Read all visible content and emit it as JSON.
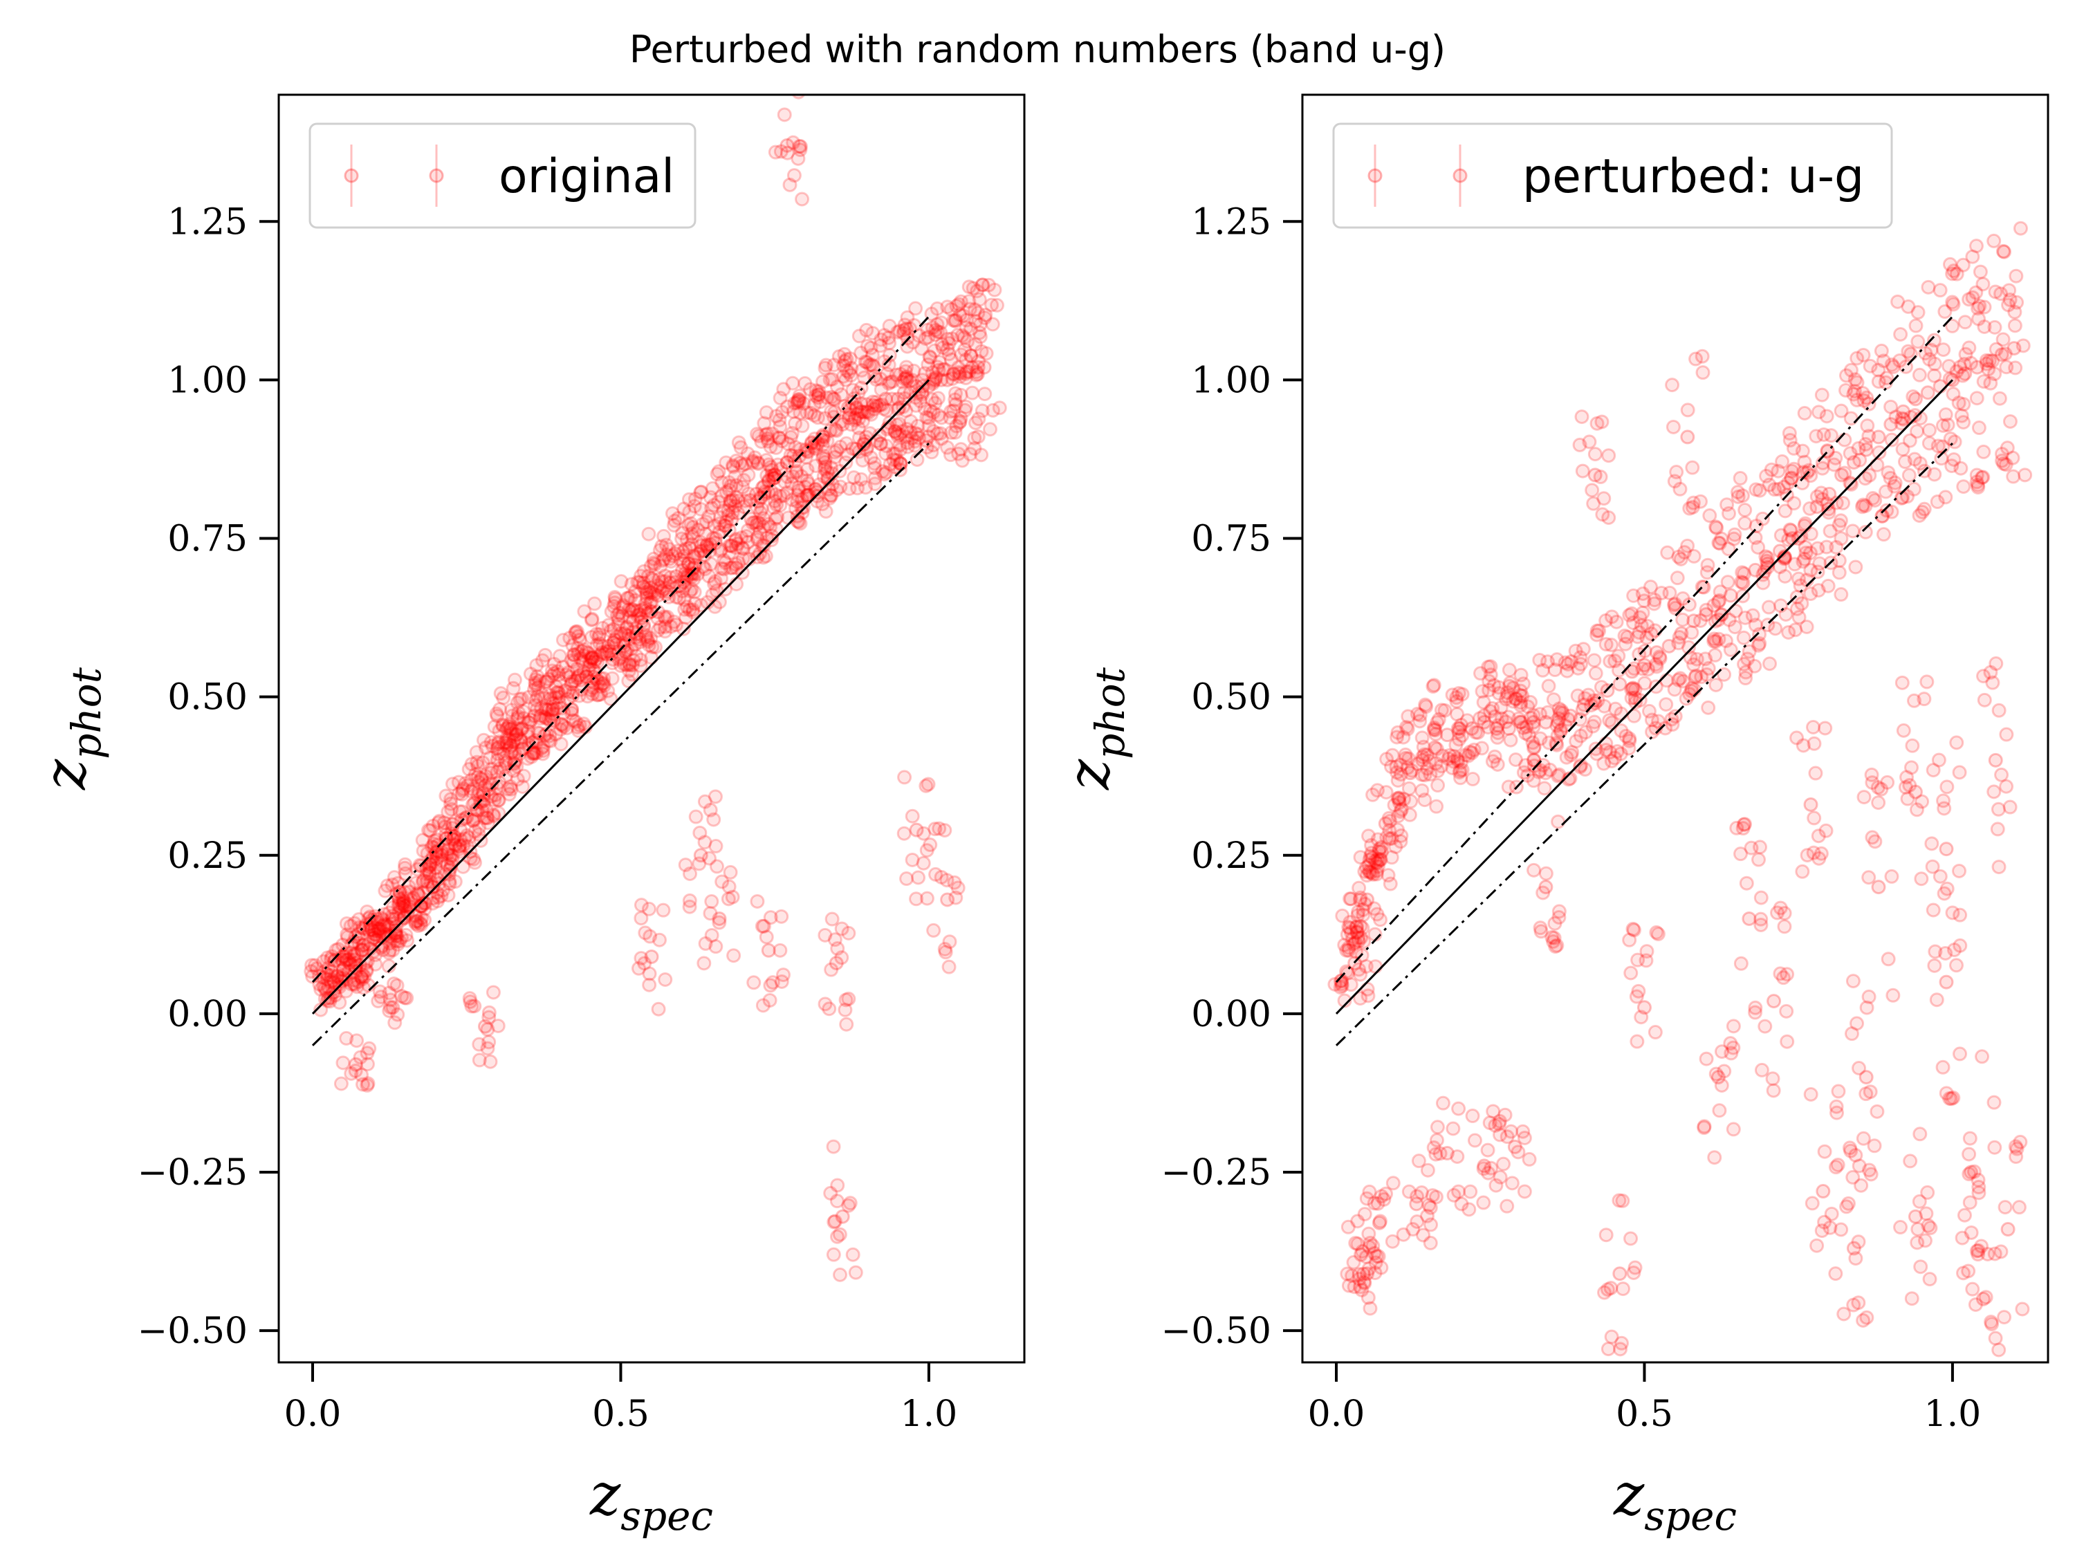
{
  "figure": {
    "title": "Perturbed with random numbers (band u-g)"
  },
  "chart_data": [
    {
      "type": "scatter",
      "legend": "original",
      "legend_position": "upper-left",
      "xlabel": {
        "base": "z",
        "sub": "spec"
      },
      "ylabel": {
        "base": "z",
        "sub": "phot"
      },
      "xlim": [
        -0.055,
        1.155
      ],
      "ylim": [
        -0.55,
        1.45
      ],
      "xticks": [
        0.0,
        0.5,
        1.0
      ],
      "xtick_labels": [
        "0.0",
        "0.5",
        "1.0"
      ],
      "yticks": [
        -0.5,
        -0.25,
        0.0,
        0.25,
        0.5,
        0.75,
        1.0,
        1.25
      ],
      "ytick_labels": [
        "−0.50",
        "−0.25",
        "0.00",
        "0.25",
        "0.50",
        "0.75",
        "1.00",
        "1.25"
      ],
      "grid": false,
      "marker_color": "#ff0000",
      "reference_lines": [
        {
          "style": "solid",
          "x": [
            0.0,
            1.0
          ],
          "y": [
            0.0,
            1.0
          ]
        },
        {
          "style": "dashdot",
          "x": [
            0.0,
            1.0
          ],
          "y": [
            0.05,
            1.1
          ]
        },
        {
          "style": "dashdot",
          "x": [
            0.0,
            1.0
          ],
          "y": [
            -0.05,
            0.9
          ]
        }
      ],
      "series": [
        {
          "x": [
            0.02,
            0.03,
            0.04,
            0.05,
            0.06,
            0.07,
            0.08,
            0.09,
            0.1,
            0.11,
            0.12,
            0.13,
            0.14,
            0.15,
            0.16,
            0.17,
            0.18,
            0.19,
            0.2,
            0.21,
            0.22,
            0.23,
            0.24,
            0.25,
            0.26,
            0.27,
            0.28,
            0.29,
            0.3,
            0.31,
            0.32,
            0.33,
            0.34,
            0.35,
            0.36,
            0.37,
            0.38,
            0.39,
            0.4,
            0.41,
            0.42,
            0.43,
            0.44,
            0.45,
            0.46,
            0.47,
            0.48,
            0.49,
            0.5,
            0.51,
            0.52,
            0.53,
            0.54,
            0.55,
            0.56,
            0.57,
            0.58,
            0.59,
            0.6,
            0.61,
            0.62,
            0.63,
            0.64,
            0.65,
            0.66,
            0.67,
            0.68,
            0.69,
            0.7,
            0.71,
            0.72,
            0.73,
            0.74,
            0.75,
            0.76,
            0.77,
            0.78,
            0.79,
            0.8,
            0.81,
            0.82,
            0.83,
            0.84,
            0.85,
            0.86,
            0.87,
            0.88,
            0.89,
            0.9,
            0.91,
            0.92,
            0.93,
            0.94,
            0.95,
            0.96,
            0.97,
            0.98,
            0.99,
            1.0,
            1.01,
            1.02,
            1.03,
            1.04,
            1.05,
            1.06,
            1.07,
            1.08,
            1.09,
            0.77,
            0.86,
            0.55,
            0.28,
            0.07,
            0.13,
            0.63,
            0.85,
            0.98,
            1.03,
            0.74,
            0.66
          ],
          "y": [
            0.04,
            0.05,
            0.06,
            0.07,
            0.08,
            0.08,
            0.1,
            0.11,
            0.12,
            0.13,
            0.14,
            0.15,
            0.16,
            0.17,
            0.18,
            0.19,
            0.21,
            0.22,
            0.23,
            0.25,
            0.26,
            0.28,
            0.29,
            0.31,
            0.33,
            0.35,
            0.36,
            0.38,
            0.4,
            0.41,
            0.42,
            0.44,
            0.45,
            0.46,
            0.47,
            0.47,
            0.48,
            0.49,
            0.5,
            0.51,
            0.52,
            0.53,
            0.54,
            0.55,
            0.56,
            0.57,
            0.58,
            0.59,
            0.6,
            0.61,
            0.62,
            0.63,
            0.64,
            0.65,
            0.66,
            0.67,
            0.68,
            0.69,
            0.7,
            0.71,
            0.72,
            0.73,
            0.74,
            0.75,
            0.76,
            0.77,
            0.78,
            0.79,
            0.8,
            0.81,
            0.82,
            0.83,
            0.84,
            0.85,
            0.86,
            0.87,
            0.88,
            0.88,
            0.89,
            0.9,
            0.9,
            0.91,
            0.92,
            0.92,
            0.93,
            0.94,
            0.94,
            0.95,
            0.95,
            0.96,
            0.96,
            0.97,
            0.97,
            0.97,
            0.98,
            0.98,
            0.99,
            0.99,
            0.99,
            1.0,
            1.0,
            1.0,
            1.01,
            1.01,
            1.01,
            1.02,
            1.02,
            1.02,
            1.37,
            -0.32,
            0.09,
            -0.02,
            -0.08,
            0.01,
            0.25,
            0.08,
            0.29,
            0.18,
            0.1,
            0.15
          ]
        }
      ]
    },
    {
      "type": "scatter",
      "legend": "perturbed: u-g",
      "legend_position": "upper-left",
      "xlabel": {
        "base": "z",
        "sub": "spec"
      },
      "ylabel": {
        "base": "z",
        "sub": "phot"
      },
      "xlim": [
        -0.055,
        1.155
      ],
      "ylim": [
        -0.55,
        1.45
      ],
      "xticks": [
        0.0,
        0.5,
        1.0
      ],
      "xtick_labels": [
        "0.0",
        "0.5",
        "1.0"
      ],
      "yticks": [
        -0.5,
        -0.25,
        0.0,
        0.25,
        0.5,
        0.75,
        1.0,
        1.25
      ],
      "ytick_labels": [
        "−0.50",
        "−0.25",
        "0.00",
        "0.25",
        "0.50",
        "0.75",
        "1.00",
        "1.25"
      ],
      "grid": false,
      "marker_color": "#ff0000",
      "reference_lines": [
        {
          "style": "solid",
          "x": [
            0.0,
            1.0
          ],
          "y": [
            0.0,
            1.0
          ]
        },
        {
          "style": "dashdot",
          "x": [
            0.0,
            1.0
          ],
          "y": [
            0.05,
            1.1
          ]
        },
        {
          "style": "dashdot",
          "x": [
            0.0,
            1.0
          ],
          "y": [
            -0.05,
            0.9
          ]
        }
      ],
      "series": [
        {
          "x": [
            0.02,
            0.03,
            0.04,
            0.05,
            0.06,
            0.07,
            0.08,
            0.1,
            0.12,
            0.14,
            0.16,
            0.18,
            0.2,
            0.22,
            0.24,
            0.26,
            0.28,
            0.3,
            0.32,
            0.34,
            0.36,
            0.38,
            0.4,
            0.42,
            0.44,
            0.46,
            0.48,
            0.5,
            0.52,
            0.54,
            0.56,
            0.58,
            0.6,
            0.62,
            0.64,
            0.66,
            0.68,
            0.7,
            0.72,
            0.74,
            0.76,
            0.78,
            0.8,
            0.82,
            0.84,
            0.86,
            0.88,
            0.9,
            0.92,
            0.94,
            0.96,
            0.98,
            1.0,
            1.02,
            1.04,
            1.06,
            1.08,
            1.1,
            0.04,
            0.05,
            0.07,
            0.46,
            0.75,
            0.84,
            0.94,
            0.99,
            1.05,
            1.09,
            0.88,
            0.79,
            0.71,
            0.62,
            0.94,
            1.03,
            0.57,
            0.5,
            0.42,
            0.99,
            0.86,
            1.07,
            0.24,
            0.29,
            0.77,
            0.13,
            0.18,
            0.67,
            0.34
          ],
          "y": [
            0.1,
            0.08,
            0.12,
            0.18,
            0.22,
            0.26,
            0.3,
            0.34,
            0.38,
            0.4,
            0.42,
            0.44,
            0.45,
            0.45,
            0.46,
            0.45,
            0.45,
            0.46,
            0.46,
            0.46,
            0.46,
            0.47,
            0.48,
            0.49,
            0.51,
            0.52,
            0.54,
            0.55,
            0.57,
            0.58,
            0.6,
            0.62,
            0.63,
            0.65,
            0.66,
            0.68,
            0.7,
            0.71,
            0.73,
            0.75,
            0.77,
            0.8,
            0.82,
            0.85,
            0.87,
            0.89,
            0.91,
            0.93,
            0.95,
            0.97,
            0.98,
            0.99,
            1.0,
            1.01,
            1.02,
            1.03,
            1.04,
            1.05,
            -0.38,
            -0.41,
            -0.33,
            -0.41,
            0.75,
            -0.37,
            -0.32,
            0.05,
            -0.45,
            -0.34,
            0.2,
            -0.28,
            0.02,
            -0.1,
            0.35,
            -0.25,
            0.91,
            0.01,
            0.85,
            0.26,
            -0.1,
            0.4,
            -0.24,
            -0.21,
            0.33,
            -0.3,
            -0.22,
            0.15,
            0.2
          ]
        }
      ]
    }
  ]
}
